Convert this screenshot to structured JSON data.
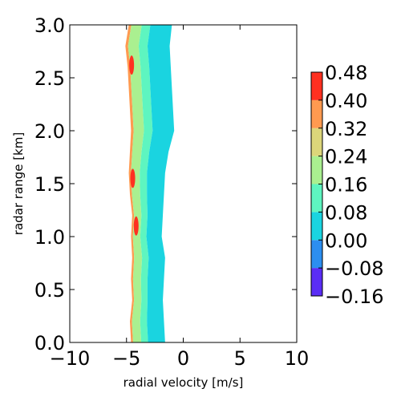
{
  "chart_data": {
    "type": "heatmap",
    "xlabel": "radial velocity [m/s]",
    "ylabel": "radar range [km]",
    "xlim": [
      -10,
      10
    ],
    "ylim": [
      0.0,
      3.0
    ],
    "x_ticks": [
      "−10",
      "−5",
      "0",
      "5",
      "10"
    ],
    "x_tick_values": [
      -10,
      -5,
      0,
      5,
      10
    ],
    "y_ticks": [
      "0.0",
      "0.5",
      "1.0",
      "1.5",
      "2.0",
      "2.5",
      "3.0"
    ],
    "y_tick_values": [
      0.0,
      0.5,
      1.0,
      1.5,
      2.0,
      2.5,
      3.0
    ],
    "grid": false,
    "colorbar": {
      "boundaries": [
        -0.16,
        -0.08,
        0.0,
        0.08,
        0.16,
        0.24,
        0.32,
        0.4,
        0.48
      ],
      "tick_labels": [
        "−0.16",
        "−0.08",
        "0.00",
        "0.08",
        "0.16",
        "0.24",
        "0.32",
        "0.40",
        "0.48"
      ],
      "colors": [
        "#5a2df5",
        "#2c8ef0",
        "#1ad4e0",
        "#5ef5c0",
        "#aaf090",
        "#dcd67a",
        "#ff9a50",
        "#ff3020"
      ]
    },
    "profile": [
      {
        "r": 0.0,
        "left": -4.6,
        "right": -1.6
      },
      {
        "r": 0.2,
        "left": -4.7,
        "right": -1.7
      },
      {
        "r": 0.4,
        "left": -4.5,
        "right": -1.8
      },
      {
        "r": 0.6,
        "left": -4.6,
        "right": -1.7
      },
      {
        "r": 0.8,
        "left": -4.5,
        "right": -1.6
      },
      {
        "r": 1.0,
        "left": -4.6,
        "right": -1.9
      },
      {
        "r": 1.2,
        "left": -4.5,
        "right": -1.8
      },
      {
        "r": 1.4,
        "left": -4.7,
        "right": -1.7
      },
      {
        "r": 1.6,
        "left": -4.8,
        "right": -1.6
      },
      {
        "r": 1.8,
        "left": -4.7,
        "right": -1.3
      },
      {
        "r": 2.0,
        "left": -4.6,
        "right": -0.8
      },
      {
        "r": 2.2,
        "left": -4.7,
        "right": -0.9
      },
      {
        "r": 2.4,
        "left": -4.8,
        "right": -1.0
      },
      {
        "r": 2.6,
        "left": -4.9,
        "right": -1.1
      },
      {
        "r": 2.8,
        "left": -5.1,
        "right": -1.2
      },
      {
        "r": 3.0,
        "left": -4.8,
        "right": -1.0
      }
    ]
  }
}
